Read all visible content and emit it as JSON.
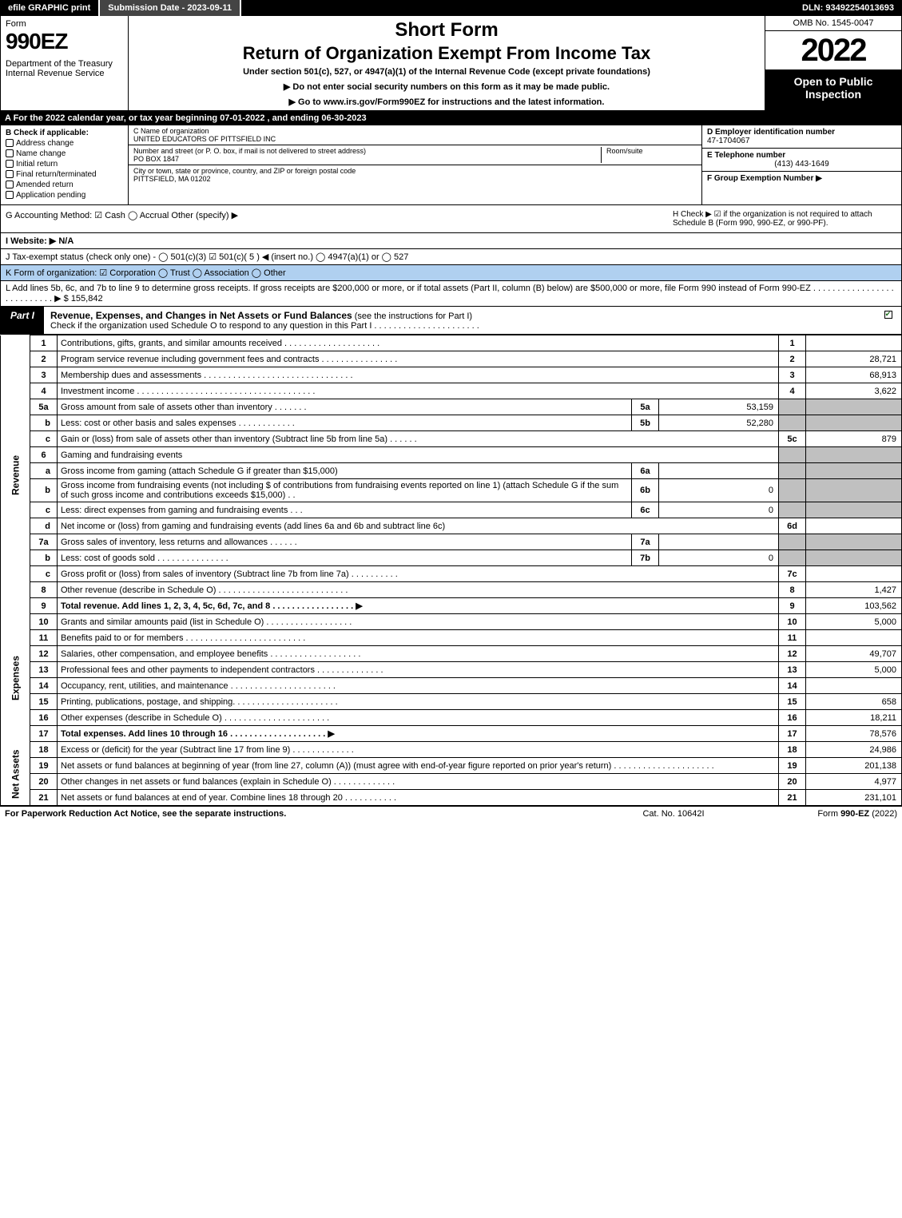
{
  "topbar": {
    "efile": "efile GRAPHIC print",
    "submission": "Submission Date - 2023-09-11",
    "dln": "DLN: 93492254013693"
  },
  "header": {
    "form_label": "Form",
    "form_no": "990EZ",
    "dept": "Department of the Treasury\nInternal Revenue Service",
    "short": "Short Form",
    "ret": "Return of Organization Exempt From Income Tax",
    "under": "Under section 501(c), 527, or 4947(a)(1) of the Internal Revenue Code (except private foundations)",
    "instr1": "▶ Do not enter social security numbers on this form as it may be made public.",
    "instr2": "▶ Go to www.irs.gov/Form990EZ for instructions and the latest information.",
    "omb": "OMB No. 1545-0047",
    "year": "2022",
    "open": "Open to Public Inspection"
  },
  "lineA": "A  For the 2022 calendar year, or tax year beginning 07-01-2022 , and ending 06-30-2023",
  "B": {
    "header": "B  Check if applicable:",
    "opts": [
      "Address change",
      "Name change",
      "Initial return",
      "Final return/terminated",
      "Amended return",
      "Application pending"
    ]
  },
  "C": {
    "name_lbl": "C Name of organization",
    "name": "UNITED EDUCATORS OF PITTSFIELD INC",
    "addr_lbl": "Number and street (or P. O. box, if mail is not delivered to street address)",
    "addr": "PO BOX 1847",
    "room_lbl": "Room/suite",
    "city_lbl": "City or town, state or province, country, and ZIP or foreign postal code",
    "city": "PITTSFIELD, MA  01202"
  },
  "D": {
    "lbl": "D Employer identification number",
    "val": "47-1704067"
  },
  "E": {
    "lbl": "E Telephone number",
    "val": "(413) 443-1649"
  },
  "F": {
    "lbl": "F Group Exemption Number   ▶"
  },
  "G": "G Accounting Method:   ☑ Cash   ◯ Accrual   Other (specify) ▶",
  "H": "H   Check ▶ ☑ if the organization is not required to attach Schedule B (Form 990, 990-EZ, or 990-PF).",
  "I": "I Website: ▶ N/A",
  "J": "J Tax-exempt status (check only one) - ◯ 501(c)(3)  ☑ 501(c)( 5 ) ◀ (insert no.)  ◯ 4947(a)(1) or  ◯ 527",
  "K": "K Form of organization:  ☑ Corporation   ◯ Trust   ◯ Association   ◯ Other",
  "L": "L Add lines 5b, 6c, and 7b to line 9 to determine gross receipts. If gross receipts are $200,000 or more, or if total assets (Part II, column (B) below) are $500,000 or more, file Form 990 instead of Form 990-EZ  .  .  .  .  .  .  .  .  .  .  .  .  .  .  .  .  .  .  .  .  .  .  .  .  .  .  .  ▶ $ 155,842",
  "partI": {
    "tab": "Part I",
    "title_b": "Revenue, Expenses, and Changes in Net Assets or Fund Balances",
    "title_rest": " (see the instructions for Part I)",
    "subtitle": "Check if the organization used Schedule O to respond to any question in this Part I  .  .  .  .  .  .  .  .  .  .  .  .  .  .  .  .  .  .  .  .  .  ."
  },
  "side_labels": {
    "revenue": "Revenue",
    "expenses": "Expenses",
    "netassets": "Net Assets"
  },
  "lines": {
    "l1": {
      "n": "1",
      "d": "Contributions, gifts, grants, and similar amounts received  .  .  .  .  .  .  .  .  .  .  .  .  .  .  .  .  .  .  .  .",
      "r": "1",
      "v": ""
    },
    "l2": {
      "n": "2",
      "d": "Program service revenue including government fees and contracts  .  .  .  .  .  .  .  .  .  .  .  .  .  .  .  .",
      "r": "2",
      "v": "28,721"
    },
    "l3": {
      "n": "3",
      "d": "Membership dues and assessments  .  .  .  .  .  .  .  .  .  .  .  .  .  .  .  .  .  .  .  .  .  .  .  .  .  .  .  .  .  .  .",
      "r": "3",
      "v": "68,913"
    },
    "l4": {
      "n": "4",
      "d": "Investment income  .  .  .  .  .  .  .  .  .  .  .  .  .  .  .  .  .  .  .  .  .  .  .  .  .  .  .  .  .  .  .  .  .  .  .  .  .",
      "r": "4",
      "v": "3,622"
    },
    "l5a": {
      "n": "5a",
      "d": "Gross amount from sale of assets other than inventory  .  .  .  .  .  .  .",
      "in": "5a",
      "iv": "53,159"
    },
    "l5b": {
      "n": "b",
      "d": "Less: cost or other basis and sales expenses  .  .  .  .  .  .  .  .  .  .  .  .",
      "in": "5b",
      "iv": "52,280"
    },
    "l5c": {
      "n": "c",
      "d": "Gain or (loss) from sale of assets other than inventory (Subtract line 5b from line 5a)  .  .  .  .  .  .",
      "r": "5c",
      "v": "879"
    },
    "l6": {
      "n": "6",
      "d": "Gaming and fundraising events"
    },
    "l6a": {
      "n": "a",
      "d": "Gross income from gaming (attach Schedule G if greater than $15,000)",
      "in": "6a",
      "iv": ""
    },
    "l6b": {
      "n": "b",
      "d": "Gross income from fundraising events (not including $                 of contributions from fundraising events reported on line 1) (attach Schedule G if the sum of such gross income and contributions exceeds $15,000)   .    .",
      "in": "6b",
      "iv": "0"
    },
    "l6c": {
      "n": "c",
      "d": "Less: direct expenses from gaming and fundraising events   .    .    .",
      "in": "6c",
      "iv": "0"
    },
    "l6d": {
      "n": "d",
      "d": "Net income or (loss) from gaming and fundraising events (add lines 6a and 6b and subtract line 6c)",
      "r": "6d",
      "v": ""
    },
    "l7a": {
      "n": "7a",
      "d": "Gross sales of inventory, less returns and allowances  .  .  .  .  .  .",
      "in": "7a",
      "iv": ""
    },
    "l7b": {
      "n": "b",
      "d": "Less: cost of goods sold   .   .   .   .   .   .   .   .   .   .   .   .   .   .   .",
      "in": "7b",
      "iv": "0"
    },
    "l7c": {
      "n": "c",
      "d": "Gross profit or (loss) from sales of inventory (Subtract line 7b from line 7a)  .  .  .  .  .  .  .  .  .  .",
      "r": "7c",
      "v": ""
    },
    "l8": {
      "n": "8",
      "d": "Other revenue (describe in Schedule O)  .  .  .  .  .  .  .  .  .  .  .  .  .  .  .  .  .  .  .  .  .  .  .  .  .  .  .",
      "r": "8",
      "v": "1,427"
    },
    "l9": {
      "n": "9",
      "d": "Total revenue. Add lines 1, 2, 3, 4, 5c, 6d, 7c, and 8   .   .   .   .   .   .   .   .   .   .   .   .   .   .   .   .   .   ▶",
      "r": "9",
      "v": "103,562",
      "bold": true
    },
    "l10": {
      "n": "10",
      "d": "Grants and similar amounts paid (list in Schedule O)  .   .   .   .   .   .   .   .   .   .   .   .   .   .   .   .   .   .",
      "r": "10",
      "v": "5,000"
    },
    "l11": {
      "n": "11",
      "d": "Benefits paid to or for members   .   .   .   .   .   .   .   .   .   .   .   .   .   .   .   .   .   .   .   .   .   .   .   .   .",
      "r": "11",
      "v": ""
    },
    "l12": {
      "n": "12",
      "d": "Salaries, other compensation, and employee benefits .  .   .   .   .   .   .   .   .   .   .   .   .   .   .   .   .   .   .",
      "r": "12",
      "v": "49,707"
    },
    "l13": {
      "n": "13",
      "d": "Professional fees and other payments to independent contractors  .   .   .   .   .   .   .   .   .   .   .   .   .   .",
      "r": "13",
      "v": "5,000"
    },
    "l14": {
      "n": "14",
      "d": "Occupancy, rent, utilities, and maintenance .   .   .   .   .   .   .   .   .   .   .   .   .   .   .   .   .   .   .   .   .   .",
      "r": "14",
      "v": ""
    },
    "l15": {
      "n": "15",
      "d": "Printing, publications, postage, and shipping.   .   .   .   .   .   .   .   .   .   .   .   .   .   .   .   .   .   .   .   .   .",
      "r": "15",
      "v": "658"
    },
    "l16": {
      "n": "16",
      "d": "Other expenses (describe in Schedule O)   .   .   .   .   .   .   .   .   .   .   .   .   .   .   .   .   .   .   .   .   .   .",
      "r": "16",
      "v": "18,211"
    },
    "l17": {
      "n": "17",
      "d": "Total expenses. Add lines 10 through 16   .   .   .   .   .   .   .   .   .   .   .   .   .   .   .   .   .   .   .   .   ▶",
      "r": "17",
      "v": "78,576",
      "bold": true
    },
    "l18": {
      "n": "18",
      "d": "Excess or (deficit) for the year (Subtract line 17 from line 9)   .   .   .   .   .   .   .   .   .   .   .   .   .",
      "r": "18",
      "v": "24,986"
    },
    "l19": {
      "n": "19",
      "d": "Net assets or fund balances at beginning of year (from line 27, column (A)) (must agree with end-of-year figure reported on prior year's return) .   .   .   .   .   .   .   .   .   .   .   .   .   .   .   .   .   .   .   .   .",
      "r": "19",
      "v": "201,138"
    },
    "l20": {
      "n": "20",
      "d": "Other changes in net assets or fund balances (explain in Schedule O) .   .   .   .   .   .   .   .   .   .   .   .   .",
      "r": "20",
      "v": "4,977"
    },
    "l21": {
      "n": "21",
      "d": "Net assets or fund balances at end of year. Combine lines 18 through 20 .   .   .   .   .   .   .   .   .   .   .",
      "r": "21",
      "v": "231,101"
    }
  },
  "footer": {
    "l": "For Paperwork Reduction Act Notice, see the separate instructions.",
    "c": "Cat. No. 10642I",
    "r_pre": "Form ",
    "r_b": "990-EZ",
    "r_post": " (2022)"
  },
  "colors": {
    "black": "#000000",
    "white": "#ffffff",
    "grey": "#c0c0c0",
    "darkgrey": "#444444",
    "blueK": "#b0d0f0"
  }
}
